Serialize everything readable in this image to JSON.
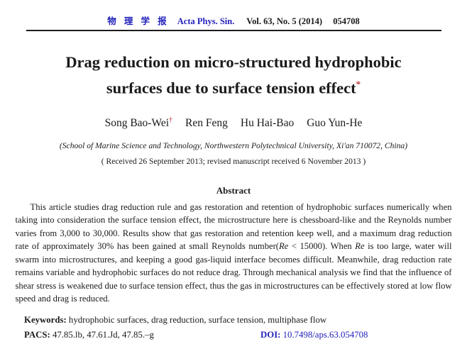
{
  "colors": {
    "accent_blue": "#2222bb",
    "mark_red": "#c03535",
    "text": "#1a1a1a"
  },
  "header": {
    "journal_cn": "物 理 学 报",
    "journal_en": "Acta Phys. Sin.",
    "volume_info": "Vol. 63, No. 5 (2014)",
    "article_no": "054708"
  },
  "title": {
    "line1": "Drag reduction on micro-structured hydrophobic",
    "line2": "surfaces due to surface tension effect",
    "footnote_mark": "*"
  },
  "authors": [
    {
      "name": "Song Bao-Wei",
      "mark": "†"
    },
    {
      "name": "Ren Feng"
    },
    {
      "name": "Hu Hai-Bao"
    },
    {
      "name": "Guo Yun-He"
    }
  ],
  "affiliation": "(School of Marine Science and Technology, Northwestern Polytechnical University, Xi'an 710072, China)",
  "received": "( Received 26 September 2013; revised manuscript received 6 November 2013 )",
  "abstract": {
    "heading": "Abstract",
    "segments": [
      {
        "text": "This article studies drag reduction rule and gas restoration and retention of hydrophobic surfaces numerically when taking into consideration the surface tension effect, the microstructure here is chessboard-like and the Reynolds number varies from 3,000 to 30,000. Results show that gas restoration and retention keep well, and a maximum drag reduction rate of approximately 30% has been gained at small Reynolds number("
      },
      {
        "text": "Re",
        "italic": true
      },
      {
        "text": " < 15000). When "
      },
      {
        "text": "Re",
        "italic": true
      },
      {
        "text": " is too large, water will swarm into microstructures, and keeping a good gas-liquid interface becomes difficult. Meanwhile, drag reduction rate remains variable and hydrophobic surfaces do not reduce drag. Through mechanical analysis we find that the influence of shear stress is weakened due to surface tension effect, thus the gas in microstructures can be effectively stored at low flow speed and drag is reduced."
      }
    ]
  },
  "keywords": {
    "label": "Keywords:",
    "value": "hydrophobic surfaces, drag reduction, surface tension, multiphase flow"
  },
  "pacs": {
    "label": "PACS:",
    "value": "47.85.lb, 47.61.Jd, 47.85.–g"
  },
  "doi": {
    "label": "DOI:",
    "value": "10.7498/aps.63.054708"
  }
}
